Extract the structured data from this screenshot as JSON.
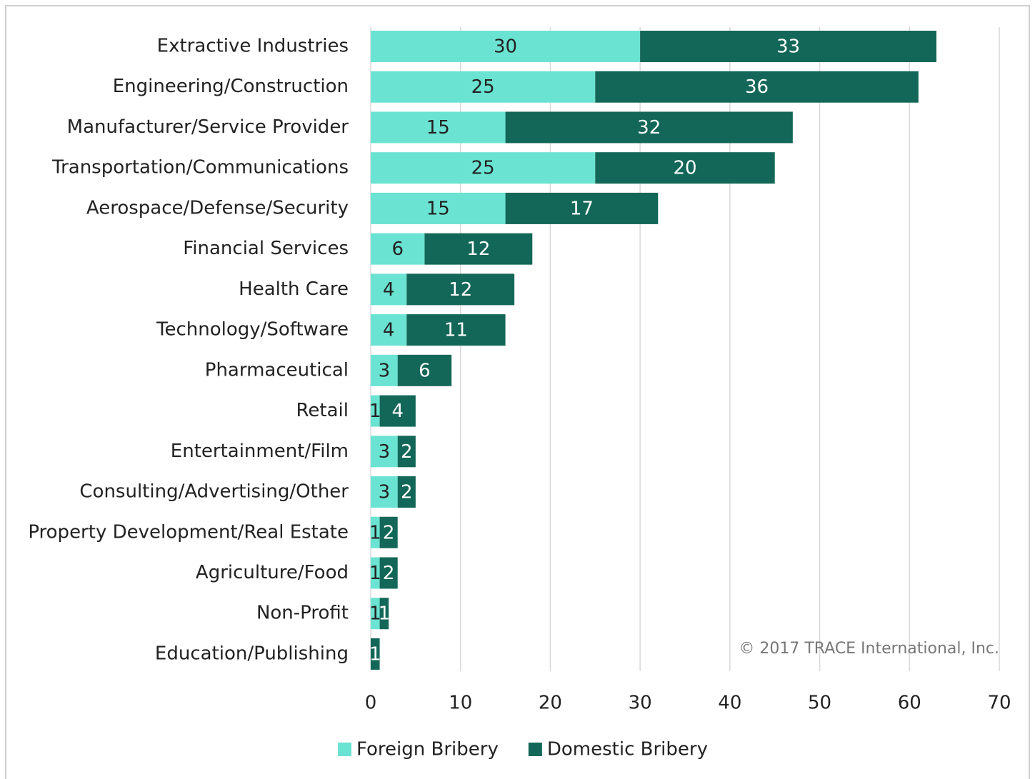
{
  "chart_data": {
    "type": "stacked-barh",
    "annotation": "© 2017 TRACE International, Inc.",
    "categories": [
      "Extractive Industries",
      "Engineering/Construction",
      "Manufacturer/Service Provider",
      "Transportation/Communications",
      "Aerospace/Defense/Security",
      "Financial Services",
      "Health Care",
      "Technology/Software",
      "Pharmaceutical",
      "Retail",
      "Entertainment/Film",
      "Consulting/Advertising/Other",
      "Property Development/Real Estate",
      "Agriculture/Food",
      "Non-Profit",
      "Education/Publishing"
    ],
    "series": [
      {
        "name": "Foreign Bribery",
        "color": "#6ae3d2",
        "values": [
          30,
          25,
          15,
          25,
          15,
          6,
          4,
          4,
          3,
          1,
          3,
          3,
          1,
          1,
          1,
          null
        ]
      },
      {
        "name": "Domestic Bribery",
        "color": "#136758",
        "values": [
          33,
          36,
          32,
          20,
          17,
          12,
          12,
          11,
          6,
          4,
          2,
          2,
          2,
          2,
          1,
          1
        ]
      }
    ],
    "xlim": [
      0,
      70
    ],
    "xticks": [
      0,
      10,
      20,
      30,
      40,
      50,
      60,
      70
    ],
    "grid": true,
    "legend": "bottom"
  }
}
